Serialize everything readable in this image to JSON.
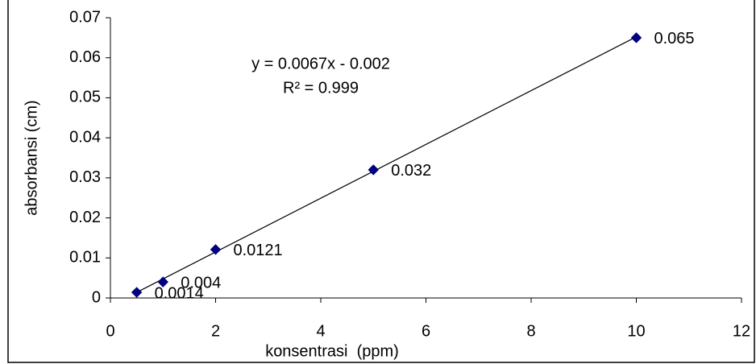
{
  "chart_data": {
    "type": "scatter",
    "x_label": "konsentrasi  (ppm)",
    "y_label": "absorbansi (cm)",
    "annotations": [
      "y = 0.0067x - 0.002",
      "R² = 0.999"
    ],
    "x": [
      0.5,
      1,
      2,
      5,
      10
    ],
    "values": [
      0.0014,
      0.004,
      0.0121,
      0.032,
      0.065
    ],
    "color": "#000080",
    "xlim": [
      0,
      12
    ],
    "xticks": [
      0,
      2,
      4,
      6,
      8,
      10,
      12
    ],
    "ylim": [
      0,
      0.07
    ],
    "yticks": [
      0,
      0.01,
      0.02,
      0.03,
      0.04,
      0.05,
      0.06,
      0.07
    ],
    "grid": false
  }
}
